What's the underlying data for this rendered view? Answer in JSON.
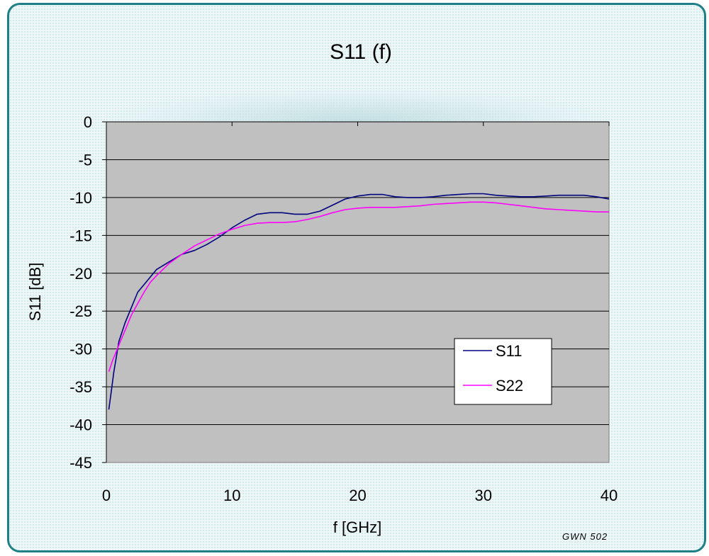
{
  "chart_data": {
    "type": "line",
    "title": "S11 (f)",
    "xlabel": "f [GHz]",
    "ylabel": "S11 [dB]",
    "xlim": [
      0,
      40
    ],
    "ylim": [
      -45,
      0
    ],
    "xticks": [
      0,
      10,
      20,
      30,
      40
    ],
    "yticks": [
      0,
      -5,
      -10,
      -15,
      -20,
      -25,
      -30,
      -35,
      -40,
      -45
    ],
    "grid": "horizontal",
    "plot_background": "#c0c0c0",
    "legend_position": "bottom-right",
    "series": [
      {
        "name": "S11",
        "color": "#000080",
        "x": [
          0.2,
          0.4,
          0.6,
          0.8,
          1,
          1.5,
          2,
          2.5,
          3,
          3.5,
          4,
          5,
          6,
          7,
          8,
          9,
          10,
          11,
          12,
          13,
          14,
          15,
          16,
          17,
          18,
          19,
          20,
          21,
          22,
          23,
          24,
          25,
          26,
          27,
          28,
          29,
          30,
          31,
          32,
          33,
          34,
          35,
          36,
          37,
          38,
          39,
          40
        ],
        "values": [
          -38,
          -35.5,
          -33,
          -31,
          -29,
          -26.5,
          -24.5,
          -22.5,
          -21.5,
          -20.5,
          -19.5,
          -18.5,
          -17.5,
          -17,
          -16.2,
          -15.2,
          -14,
          -13,
          -12.2,
          -12,
          -12,
          -12.2,
          -12.2,
          -11.8,
          -11,
          -10.2,
          -9.8,
          -9.6,
          -9.6,
          -9.9,
          -10,
          -10,
          -9.9,
          -9.7,
          -9.6,
          -9.5,
          -9.5,
          -9.7,
          -9.8,
          -9.9,
          -9.9,
          -9.8,
          -9.7,
          -9.7,
          -9.7,
          -9.9,
          -10.2
        ]
      },
      {
        "name": "S22",
        "color": "#ff00ff",
        "x": [
          0.2,
          0.5,
          1,
          1.5,
          2,
          2.5,
          3,
          3.5,
          4,
          5,
          6,
          7,
          8,
          9,
          10,
          11,
          12,
          13,
          14,
          15,
          16,
          17,
          18,
          19,
          20,
          21,
          22,
          23,
          24,
          25,
          26,
          27,
          28,
          29,
          30,
          31,
          32,
          33,
          34,
          35,
          36,
          37,
          38,
          39,
          40
        ],
        "values": [
          -33,
          -31.5,
          -29.5,
          -27.5,
          -25.5,
          -24,
          -22.5,
          -21.2,
          -20.3,
          -18.7,
          -17.5,
          -16.4,
          -15.6,
          -14.8,
          -14.2,
          -13.7,
          -13.4,
          -13.3,
          -13.3,
          -13.2,
          -12.9,
          -12.5,
          -12,
          -11.6,
          -11.4,
          -11.3,
          -11.3,
          -11.3,
          -11.2,
          -11.1,
          -10.9,
          -10.8,
          -10.7,
          -10.6,
          -10.6,
          -10.7,
          -10.9,
          -11.1,
          -11.3,
          -11.5,
          -11.6,
          -11.7,
          -11.8,
          -11.9,
          -11.9
        ]
      }
    ]
  },
  "footer": {
    "signature": "GWN 502"
  }
}
